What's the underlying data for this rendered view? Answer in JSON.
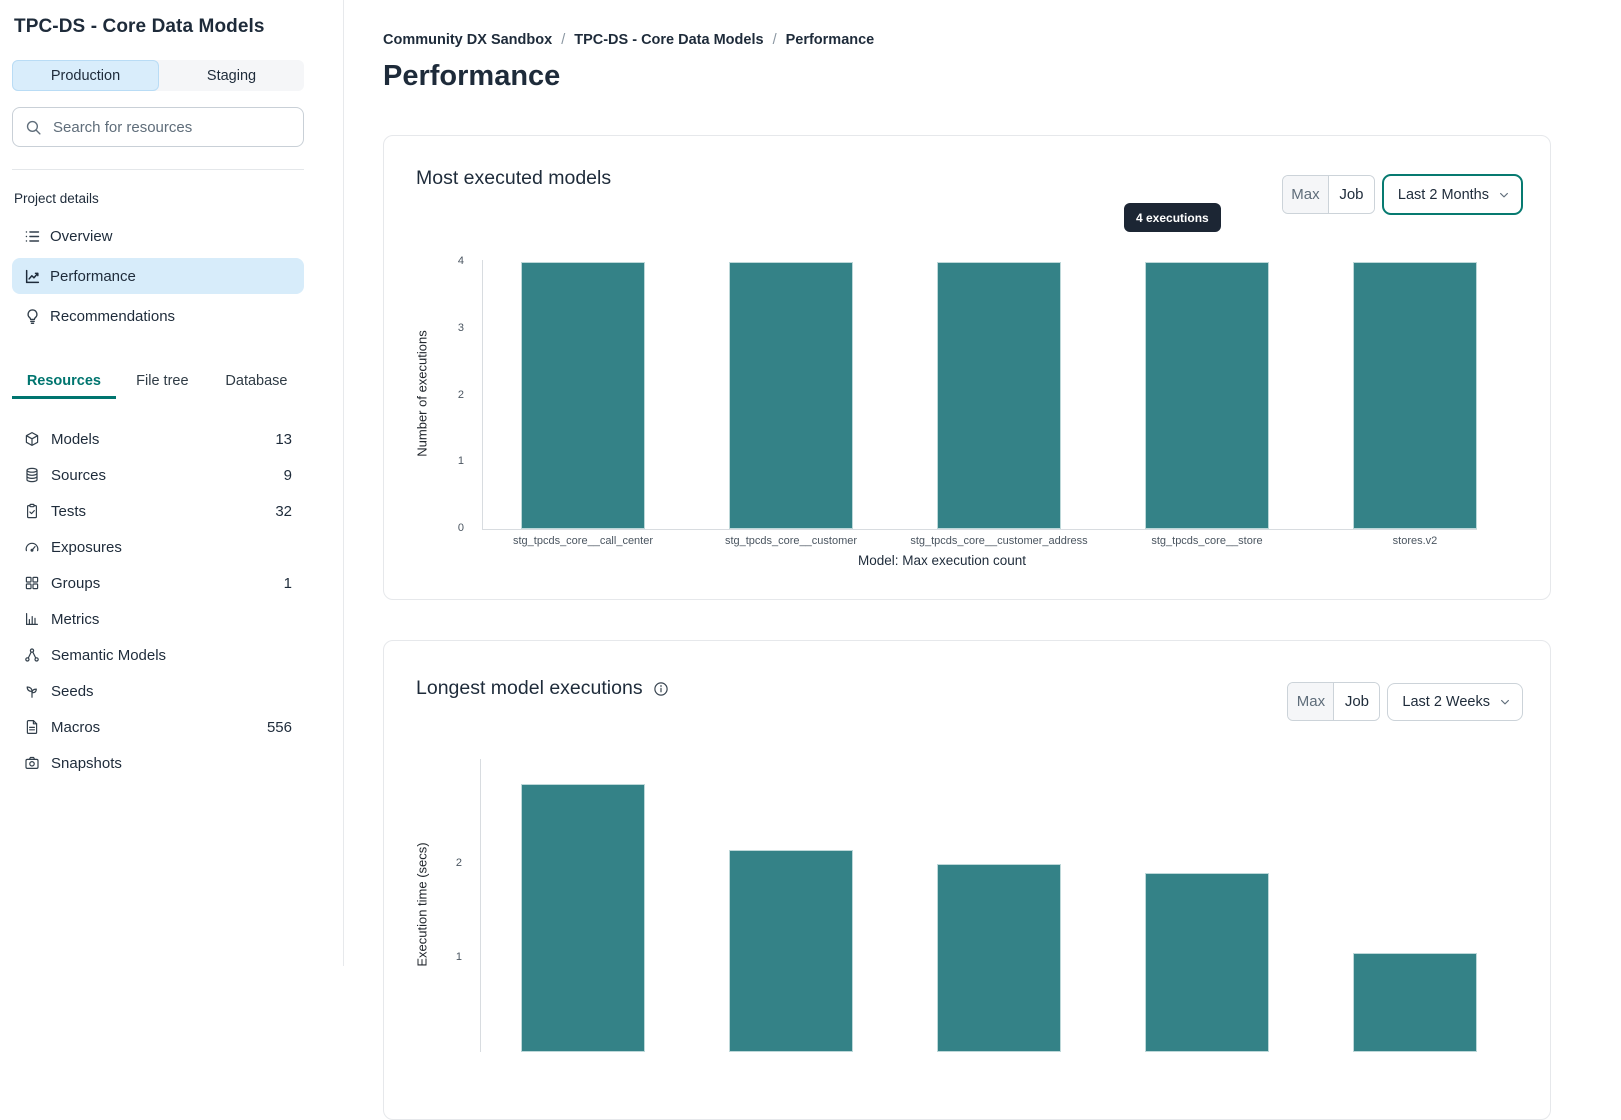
{
  "sidebar": {
    "project_title": "TPC-DS - Core Data Models",
    "environment_toggle": {
      "production": "Production",
      "staging": "Staging",
      "selected": "Production"
    },
    "search": {
      "placeholder": "Search for resources"
    },
    "project_details_label": "Project details",
    "nav_items": [
      {
        "label": "Overview",
        "icon": "list-icon",
        "active": false
      },
      {
        "label": "Performance",
        "icon": "chart-line-icon",
        "active": true
      },
      {
        "label": "Recommendations",
        "icon": "lightbulb-icon",
        "active": false
      }
    ],
    "tabs": [
      {
        "label": "Resources",
        "active": true
      },
      {
        "label": "File tree",
        "active": false
      },
      {
        "label": "Database",
        "active": false
      }
    ],
    "resources": [
      {
        "label": "Models",
        "count": "13",
        "icon": "cube-icon"
      },
      {
        "label": "Sources",
        "count": "9",
        "icon": "database-icon"
      },
      {
        "label": "Tests",
        "count": "32",
        "icon": "clipboard-check-icon"
      },
      {
        "label": "Exposures",
        "count": "",
        "icon": "gauge-icon"
      },
      {
        "label": "Groups",
        "count": "1",
        "icon": "grid-icon"
      },
      {
        "label": "Metrics",
        "count": "",
        "icon": "bar-chart-icon"
      },
      {
        "label": "Semantic Models",
        "count": "",
        "icon": "network-icon"
      },
      {
        "label": "Seeds",
        "count": "",
        "icon": "sprout-icon"
      },
      {
        "label": "Macros",
        "count": "556",
        "icon": "file-icon"
      },
      {
        "label": "Snapshots",
        "count": "",
        "icon": "camera-icon"
      }
    ]
  },
  "breadcrumb": {
    "items": [
      "Community DX Sandbox",
      "TPC-DS - Core Data Models",
      "Performance"
    ],
    "separator": "/"
  },
  "page_title": "Performance",
  "cards": [
    {
      "title": "Most executed models",
      "tooltip": "4 executions",
      "controls": {
        "max": "Max",
        "job": "Job",
        "range": "Last 2 Months",
        "selected": "Job"
      }
    },
    {
      "title": "Longest model executions",
      "controls": {
        "max": "Max",
        "job": "Job",
        "range": "Last 2 Weeks",
        "selected": "Job"
      }
    }
  ],
  "chart_data": [
    {
      "type": "bar",
      "title": "Most executed models",
      "categories": [
        "stg_tpcds_core__call_center",
        "stg_tpcds_core__customer",
        "stg_tpcds_core__customer_address",
        "stg_tpcds_core__store",
        "stores.v2"
      ],
      "values": [
        4,
        4,
        4,
        4,
        4
      ],
      "xlabel": "Model: Max execution count",
      "ylabel": "Number of executions",
      "ylim": [
        0,
        4
      ],
      "yticks": [
        0,
        1,
        2,
        3,
        4
      ],
      "grid": false,
      "annotation": "4 executions"
    },
    {
      "type": "bar",
      "title": "Longest model executions",
      "categories": [
        "",
        "",
        "",
        "",
        ""
      ],
      "values": [
        2.85,
        2.15,
        2.0,
        1.9,
        1.05
      ],
      "xlabel": "",
      "ylabel": "Execution time (secs)",
      "ylim": [
        0,
        3
      ],
      "yticks": [
        1,
        2
      ],
      "grid": false,
      "note": "bottom of chart cut off by viewport"
    }
  ],
  "colors": {
    "bar_teal": "#348287",
    "accent_teal": "#00756f",
    "selected_blue": "#d7ecfa",
    "tooltip_bg": "#1c2634",
    "text_primary": "#1e2b3a",
    "text_secondary": "#5f6d7a",
    "border": "#e6e8eb"
  }
}
